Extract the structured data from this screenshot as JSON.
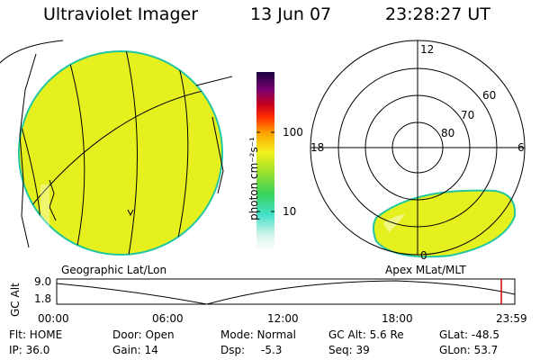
{
  "header": {
    "instrument": "Ultraviolet Imager",
    "date": "13 Jun 07",
    "time": "23:28:27 UT"
  },
  "colorbar": {
    "unit_label": "photon cm⁻²s⁻¹",
    "ticks": [
      "100",
      "10"
    ]
  },
  "polar": {
    "lat_labels": [
      "60",
      "70",
      "80"
    ],
    "mlt_labels": [
      "12",
      "18",
      "6",
      "0"
    ]
  },
  "panels": {
    "left_caption": "Geographic Lat/Lon",
    "right_caption": "Apex MLat/MLT"
  },
  "altitude_plot": {
    "ylabel": "GC Alt",
    "y_ticks": [
      "9.0",
      "1.8"
    ],
    "x_ticks": [
      "00:00",
      "06:00",
      "12:00",
      "18:00",
      "23:59"
    ]
  },
  "status": {
    "flt": "Flt: HOME",
    "ip": "IP: 36.0",
    "door": "Door: Open",
    "gain": "Gain: 14",
    "mode": "Mode: Normal",
    "dsp_label": "Dsp:",
    "dsp_value": "-5.3",
    "gc_alt": "GC Alt: 5.6 Re",
    "seq": "Seq: 39",
    "glat": "GLat: -48.5",
    "glon": "GLon: 53.7"
  },
  "colors": {
    "image_fill": "#e6f01e",
    "limb": "#22c7a0",
    "marker": "#d40000"
  }
}
